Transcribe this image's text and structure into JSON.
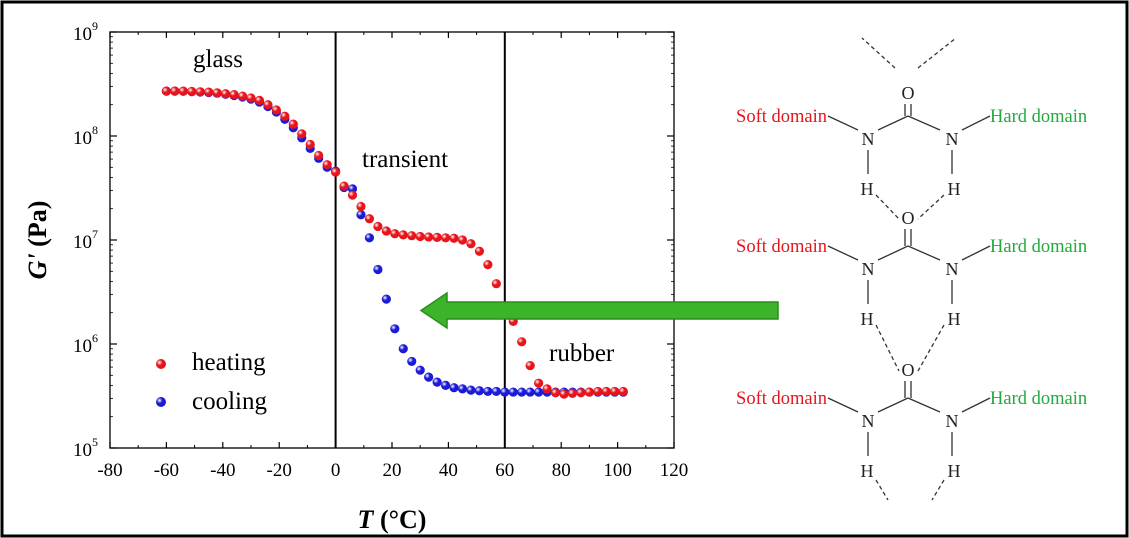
{
  "chart_data": {
    "type": "scatter",
    "xlabel_var": "T",
    "xlabel_unit": " (°C)",
    "ylabel_var": "G'",
    "ylabel_unit": " (Pa)",
    "xlim": [
      -80,
      120
    ],
    "ylim": [
      100000,
      1000000000
    ],
    "y_scale": "log",
    "x_ticks": [
      "-80",
      "-60",
      "-40",
      "-20",
      "0",
      "20",
      "40",
      "60",
      "80",
      "100",
      "120"
    ],
    "y_ticks": [
      {
        "base": "10",
        "exp": "5"
      },
      {
        "base": "10",
        "exp": "6"
      },
      {
        "base": "10",
        "exp": "7"
      },
      {
        "base": "10",
        "exp": "8"
      },
      {
        "base": "10",
        "exp": "9"
      }
    ],
    "vertical_lines": [
      0,
      60
    ],
    "annotations": {
      "glass": "glass",
      "transient": "transient",
      "rubber": "rubber"
    },
    "legend_position": "bottom-left",
    "series": [
      {
        "name": "heating",
        "color": "#e8141c",
        "x": [
          -60,
          -57,
          -54,
          -51,
          -48,
          -45,
          -42,
          -39,
          -36,
          -33,
          -30,
          -27,
          -24,
          -21,
          -18,
          -15,
          -12,
          -9,
          -6,
          -3,
          0,
          3,
          6,
          9,
          12,
          15,
          18,
          21,
          24,
          27,
          30,
          33,
          36,
          39,
          42,
          45,
          48,
          51,
          54,
          57,
          60,
          63,
          66,
          69,
          72,
          75,
          78,
          81,
          84,
          87,
          90,
          93,
          96,
          99,
          102
        ],
        "y": [
          270000000.0,
          270000000.0,
          270000000.0,
          268000000.0,
          266000000.0,
          264000000.0,
          260000000.0,
          255000000.0,
          250000000.0,
          242000000.0,
          232000000.0,
          220000000.0,
          200000000.0,
          178000000.0,
          155000000.0,
          130000000.0,
          105000000.0,
          83000000.0,
          65000000.0,
          53000000.0,
          45000000.0,
          33000000.0,
          27000000.0,
          21000000.0,
          16000000.0,
          13500000.0,
          12200000.0,
          11500000.0,
          11200000.0,
          11000000.0,
          10800000.0,
          10700000.0,
          10600000.0,
          10500000.0,
          10400000.0,
          10000000.0,
          9200000.0,
          7800000.0,
          5800000.0,
          3800000.0,
          2300000.0,
          1650000.0,
          1050000.0,
          620000.0,
          420000.0,
          370000.0,
          340000.0,
          330000.0,
          335000.0,
          340000.0,
          345000.0,
          350000.0,
          350000.0,
          350000.0,
          350000.0
        ]
      },
      {
        "name": "cooling",
        "color": "#1a1ad8",
        "x": [
          -60,
          -57,
          -54,
          -51,
          -48,
          -45,
          -42,
          -39,
          -36,
          -33,
          -30,
          -27,
          -24,
          -21,
          -18,
          -15,
          -12,
          -9,
          -6,
          -3,
          0,
          3,
          6,
          9,
          12,
          15,
          18,
          21,
          24,
          27,
          30,
          33,
          36,
          39,
          42,
          45,
          48,
          51,
          54,
          57,
          60,
          63,
          66,
          69,
          72,
          75,
          78,
          81,
          84,
          87,
          90,
          93,
          96,
          99,
          102
        ],
        "y": [
          270000000.0,
          270000000.0,
          269000000.0,
          267000000.0,
          265000000.0,
          262000000.0,
          258000000.0,
          252000000.0,
          245000000.0,
          237000000.0,
          226000000.0,
          212000000.0,
          192000000.0,
          170000000.0,
          145000000.0,
          120000000.0,
          96000000.0,
          76000000.0,
          61000000.0,
          50000000.0,
          46000000.0,
          32000000.0,
          31000000.0,
          17500000.0,
          10500000.0,
          5200000.0,
          2700000.0,
          1400000.0,
          900000.0,
          680000.0,
          560000.0,
          480000.0,
          430000.0,
          400000.0,
          380000.0,
          370000.0,
          360000.0,
          355000.0,
          350000.0,
          350000.0,
          345000.0,
          345000.0,
          345000.0,
          345000.0,
          345000.0,
          345000.0,
          345000.0,
          345000.0,
          345000.0,
          345000.0,
          345000.0,
          345000.0,
          345000.0,
          345000.0,
          345000.0
        ]
      }
    ]
  },
  "diagram": {
    "left_label": "Soft domain",
    "right_label": "Hard domain",
    "oxygen": "O",
    "nitrogen": "N",
    "hydrogen": "H",
    "left_color": "#e8141c",
    "right_color": "#22aa3c",
    "arrow_color": "#3cb42a"
  }
}
